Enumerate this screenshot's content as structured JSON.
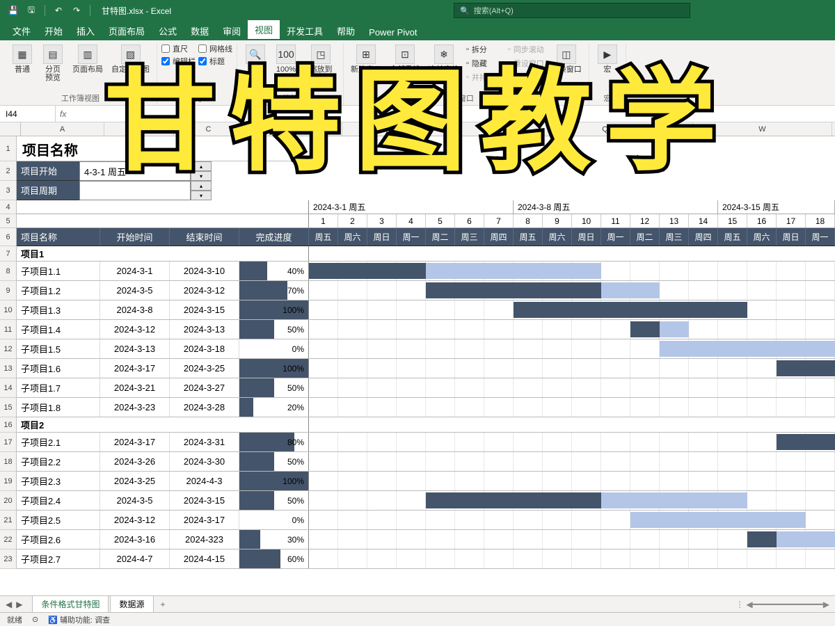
{
  "app": {
    "filename": "甘特图.xlsx",
    "appname": "Excel",
    "title_sep": " - ",
    "search_placeholder": "搜索(Alt+Q)"
  },
  "overlay": "甘特图教学",
  "menu": {
    "tabs": [
      "文件",
      "开始",
      "插入",
      "页面布局",
      "公式",
      "数据",
      "审阅",
      "视图",
      "开发工具",
      "帮助",
      "Power Pivot"
    ],
    "active_index": 7
  },
  "ribbon": {
    "groups": [
      {
        "label": "工作簿视图",
        "items": [
          {
            "type": "lg",
            "icon": "▦",
            "label": "普通"
          },
          {
            "type": "lg",
            "icon": "▤",
            "label": "分页\n预览"
          },
          {
            "type": "lg",
            "icon": "▥",
            "label": "页面布局"
          },
          {
            "type": "lg",
            "icon": "▨",
            "label": "自定义视图"
          }
        ]
      },
      {
        "label": "显示",
        "items": [
          {
            "type": "chk",
            "checked": false,
            "label": "直尺"
          },
          {
            "type": "chk",
            "checked": true,
            "label": "编辑栏"
          },
          {
            "type": "chk",
            "checked": false,
            "label": "网格线"
          },
          {
            "type": "chk",
            "checked": true,
            "label": "标题"
          }
        ]
      },
      {
        "label": "缩放",
        "items": [
          {
            "type": "lg",
            "icon": "🔍",
            "label": "缩\n放"
          },
          {
            "type": "lg",
            "icon": "100",
            "label": "100%"
          },
          {
            "type": "lg",
            "icon": "◳",
            "label": "缩放到\n选定区域"
          }
        ]
      },
      {
        "label": "窗口",
        "items": [
          {
            "type": "lg",
            "icon": "⊞",
            "label": "新建窗口"
          },
          {
            "type": "lg",
            "icon": "⊡",
            "label": "全部重排"
          },
          {
            "type": "lg",
            "icon": "❄",
            "label": "冻结窗格"
          },
          {
            "type": "sm",
            "label": "拆分"
          },
          {
            "type": "sm",
            "label": "隐藏"
          },
          {
            "type": "sm-dis",
            "label": "并排查看"
          },
          {
            "type": "sm-dis",
            "label": "同步滚动"
          },
          {
            "type": "sm-dis",
            "label": "重设窗口"
          },
          {
            "type": "lg",
            "icon": "◫",
            "label": "切换窗口"
          }
        ]
      },
      {
        "label": "宏",
        "items": [
          {
            "type": "lg",
            "icon": "▶",
            "label": "宏"
          }
        ]
      }
    ]
  },
  "formulabar": {
    "namebox": "I44",
    "formula": ""
  },
  "columns": [
    "A",
    "B",
    "C",
    "D",
    "E",
    "L",
    "Q",
    "W"
  ],
  "project": {
    "title_label": "项目名称",
    "start_label": "项目开始",
    "start_value": "4-3-1 周五",
    "period_label": "项目周期"
  },
  "gantt": {
    "weeks": [
      {
        "label": "2024-3-1 周五",
        "days": [
          1,
          2,
          3,
          4,
          5,
          6,
          7
        ]
      },
      {
        "label": "2024-3-8 周五",
        "days": [
          8,
          9,
          10,
          11,
          12,
          13,
          14
        ]
      },
      {
        "label": "2024-3-15 周五",
        "days": [
          15,
          16,
          17,
          18
        ]
      }
    ],
    "weekdays": [
      "周五",
      "周六",
      "周日",
      "周一",
      "周二",
      "周三",
      "周四",
      "周五",
      "周六",
      "周日",
      "周一",
      "周二",
      "周三",
      "周四",
      "周五",
      "周六",
      "周日",
      "周一"
    ],
    "headers": {
      "name": "项目名称",
      "start": "开始时间",
      "end": "结束时间",
      "progress": "完成进度"
    },
    "day_width": 42,
    "colors": {
      "done": "#44546a",
      "remain": "#b4c6e7",
      "header_bg": "#44546a"
    },
    "sections": [
      {
        "name": "项目1",
        "tasks": [
          {
            "name": "子项目1.1",
            "start": "2024-3-1",
            "end": "2024-3-10",
            "progress": 40,
            "bar_start": 1,
            "bar_done": 4,
            "bar_total": 10
          },
          {
            "name": "子项目1.2",
            "start": "2024-3-5",
            "end": "2024-3-12",
            "progress": 70,
            "bar_start": 5,
            "bar_done": 6,
            "bar_total": 8
          },
          {
            "name": "子项目1.3",
            "start": "2024-3-8",
            "end": "2024-3-15",
            "progress": 100,
            "bar_start": 8,
            "bar_done": 8,
            "bar_total": 8
          },
          {
            "name": "子项目1.4",
            "start": "2024-3-12",
            "end": "2024-3-13",
            "progress": 50,
            "bar_start": 12,
            "bar_done": 1,
            "bar_total": 2
          },
          {
            "name": "子项目1.5",
            "start": "2024-3-13",
            "end": "2024-3-18",
            "progress": 0,
            "bar_start": 13,
            "bar_done": 0,
            "bar_total": 6
          },
          {
            "name": "子项目1.6",
            "start": "2024-3-17",
            "end": "2024-3-25",
            "progress": 100,
            "bar_start": 17,
            "bar_done": 2,
            "bar_total": 2
          },
          {
            "name": "子项目1.7",
            "start": "2024-3-21",
            "end": "2024-3-27",
            "progress": 50,
            "bar_start": 0,
            "bar_done": 0,
            "bar_total": 0
          },
          {
            "name": "子项目1.8",
            "start": "2024-3-23",
            "end": "2024-3-28",
            "progress": 20,
            "bar_start": 0,
            "bar_done": 0,
            "bar_total": 0
          }
        ]
      },
      {
        "name": "项目2",
        "tasks": [
          {
            "name": "子项目2.1",
            "start": "2024-3-17",
            "end": "2024-3-31",
            "progress": 80,
            "bar_start": 17,
            "bar_done": 2,
            "bar_total": 2
          },
          {
            "name": "子项目2.2",
            "start": "2024-3-26",
            "end": "2024-3-30",
            "progress": 50,
            "bar_start": 0,
            "bar_done": 0,
            "bar_total": 0
          },
          {
            "name": "子项目2.3",
            "start": "2024-3-25",
            "end": "2024-4-3",
            "progress": 100,
            "bar_start": 0,
            "bar_done": 0,
            "bar_total": 0
          },
          {
            "name": "子项目2.4",
            "start": "2024-3-5",
            "end": "2024-3-15",
            "progress": 50,
            "bar_start": 5,
            "bar_done": 6,
            "bar_total": 11
          },
          {
            "name": "子项目2.5",
            "start": "2024-3-12",
            "end": "2024-3-17",
            "progress": 0,
            "bar_start": 12,
            "bar_done": 0,
            "bar_total": 6
          },
          {
            "name": "子项目2.6",
            "start": "2024-3-16",
            "end": "2024-323",
            "progress": 30,
            "bar_start": 16,
            "bar_done": 1,
            "bar_total": 3
          },
          {
            "name": "子项目2.7",
            "start": "2024-4-7",
            "end": "2024-4-15",
            "progress": 60,
            "bar_start": 0,
            "bar_done": 0,
            "bar_total": 0
          }
        ]
      }
    ]
  },
  "sheets": {
    "tabs": [
      "条件格式甘特图",
      "数据源"
    ],
    "active": 0
  },
  "statusbar": {
    "ready": "就绪",
    "acc_label": "辅助功能: 调查"
  },
  "row_numbers": [
    1,
    2,
    3,
    4,
    5,
    6,
    7,
    8,
    9,
    10,
    11,
    12,
    13,
    14,
    15,
    16,
    17,
    18,
    19,
    20,
    21,
    22,
    23
  ]
}
